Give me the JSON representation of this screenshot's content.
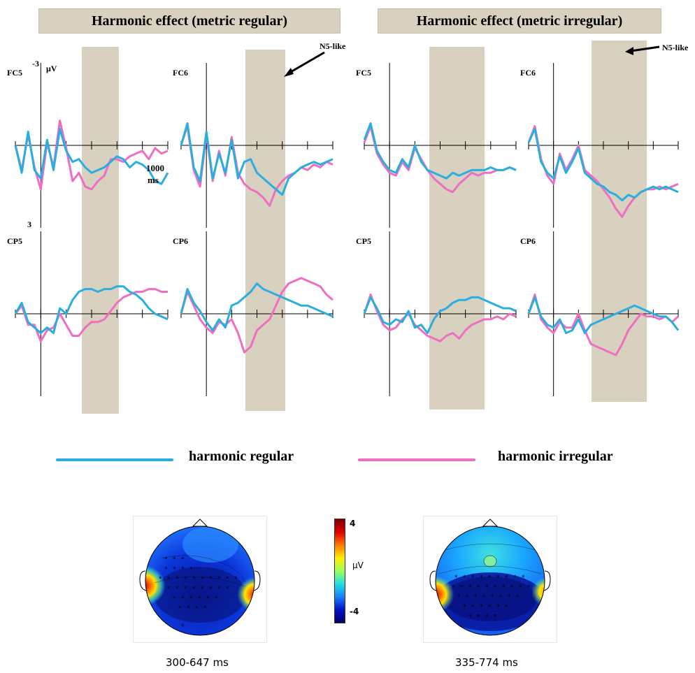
{
  "banners": {
    "left": "Harmonic effect  (metric regular)",
    "right": "Harmonic effect  (metric irregular)"
  },
  "axis_labels": {
    "uv": "μV",
    "neg": "-3",
    "pos": "3",
    "time": "1000",
    "time_unit": "ms"
  },
  "annotation": "N5-like",
  "legend": {
    "regular": {
      "label": "harmonic regular",
      "color": "#2aaee0"
    },
    "irregular": {
      "label": "harmonic irregular",
      "color": "#f06ec0"
    }
  },
  "colorbar": {
    "max": "4",
    "min": "-4",
    "unit": "μV"
  },
  "topomaps": [
    {
      "caption": "300-647  ms"
    },
    {
      "caption": "335-774  ms"
    }
  ],
  "chart_data": [
    {
      "type": "line",
      "panel": "metric regular",
      "electrode": "FC5",
      "x": [
        -200,
        -150,
        -100,
        -50,
        0,
        50,
        100,
        150,
        200,
        250,
        300,
        350,
        400,
        450,
        500,
        550,
        600,
        650,
        700,
        750,
        800,
        850,
        900,
        950,
        1000
      ],
      "ylim": [
        3,
        -3
      ],
      "xlim": [
        -200,
        1000
      ],
      "highlight_window": [
        300,
        647
      ],
      "series": [
        {
          "name": "harmonic regular",
          "values": [
            0.0,
            1.0,
            -0.5,
            0.9,
            1.2,
            -0.2,
            0.9,
            -0.6,
            0.2,
            0.6,
            0.5,
            0.8,
            1.0,
            0.9,
            0.8,
            0.6,
            0.4,
            0.5,
            0.8,
            0.6,
            0.7,
            0.9,
            1.3,
            1.4,
            1.0
          ]
        },
        {
          "name": "harmonic irregular",
          "values": [
            0.0,
            0.9,
            -0.4,
            0.8,
            1.6,
            -0.1,
            0.8,
            -0.9,
            0.1,
            1.3,
            1.0,
            1.5,
            1.6,
            1.3,
            1.1,
            0.5,
            0.5,
            0.6,
            0.4,
            0.3,
            0.2,
            0.5,
            0.1,
            0.3,
            0.2
          ]
        }
      ]
    },
    {
      "type": "line",
      "panel": "metric regular",
      "electrode": "FC6",
      "x": [
        -200,
        -150,
        -100,
        -50,
        0,
        50,
        100,
        150,
        200,
        250,
        300,
        350,
        400,
        450,
        500,
        550,
        600,
        650,
        700,
        750,
        800,
        850,
        900,
        950,
        1000
      ],
      "ylim": [
        3,
        -3
      ],
      "xlim": [
        -200,
        1000
      ],
      "highlight_window": [
        300,
        647
      ],
      "series": [
        {
          "name": "harmonic regular",
          "values": [
            0.0,
            -0.8,
            0.8,
            1.3,
            -0.5,
            1.2,
            0.3,
            1.0,
            -0.2,
            1.2,
            0.6,
            0.5,
            1.0,
            1.2,
            1.4,
            1.6,
            1.8,
            1.2,
            1.0,
            0.8,
            0.7,
            0.6,
            0.7,
            0.6,
            0.5
          ]
        },
        {
          "name": "harmonic irregular",
          "values": [
            0.0,
            -0.7,
            0.9,
            1.5,
            -0.4,
            1.3,
            0.2,
            1.1,
            -0.3,
            1.0,
            1.4,
            1.6,
            1.7,
            1.9,
            2.2,
            1.6,
            1.3,
            1.1,
            1.0,
            0.8,
            0.9,
            0.7,
            0.8,
            0.6,
            0.7
          ]
        }
      ]
    },
    {
      "type": "line",
      "panel": "metric irregular",
      "electrode": "FC5",
      "x": [
        -200,
        -150,
        -100,
        -50,
        0,
        50,
        100,
        150,
        200,
        250,
        300,
        350,
        400,
        450,
        500,
        550,
        600,
        650,
        700,
        750,
        800,
        850,
        900,
        950,
        1000
      ],
      "ylim": [
        3,
        -3
      ],
      "xlim": [
        -200,
        1000
      ],
      "highlight_window": [
        335,
        774
      ],
      "series": [
        {
          "name": "harmonic regular",
          "values": [
            -0.2,
            -0.8,
            0.2,
            0.6,
            0.9,
            1.0,
            0.5,
            0.8,
            0.0,
            0.6,
            0.9,
            1.0,
            1.1,
            1.2,
            1.0,
            1.1,
            1.0,
            0.9,
            0.9,
            0.9,
            0.8,
            0.9,
            0.9,
            0.8,
            0.9
          ]
        },
        {
          "name": "harmonic irregular",
          "values": [
            -0.1,
            -0.7,
            0.3,
            0.7,
            1.0,
            1.1,
            0.6,
            0.9,
            0.1,
            0.5,
            0.9,
            1.2,
            1.4,
            1.6,
            1.7,
            1.4,
            1.2,
            1.0,
            1.1,
            1.0,
            1.0,
            0.9,
            0.9,
            0.8,
            0.9
          ]
        }
      ]
    },
    {
      "type": "line",
      "panel": "metric irregular",
      "electrode": "FC6",
      "x": [
        -200,
        -150,
        -100,
        -50,
        0,
        50,
        100,
        150,
        200,
        250,
        300,
        350,
        400,
        450,
        500,
        550,
        600,
        650,
        700,
        750,
        800,
        850,
        900,
        950,
        1000
      ],
      "ylim": [
        3,
        -3
      ],
      "xlim": [
        -200,
        1000
      ],
      "highlight_window": [
        335,
        774
      ],
      "series": [
        {
          "name": "harmonic regular",
          "values": [
            -0.1,
            -0.6,
            0.6,
            1.0,
            1.2,
            0.4,
            1.0,
            0.6,
            0.1,
            1.0,
            1.2,
            1.4,
            1.5,
            1.7,
            1.8,
            2.0,
            1.8,
            1.9,
            1.7,
            1.6,
            1.5,
            1.6,
            1.5,
            1.6,
            1.7
          ]
        },
        {
          "name": "harmonic irregular",
          "values": [
            -0.1,
            -0.7,
            0.5,
            1.1,
            1.4,
            0.3,
            0.9,
            0.5,
            0.0,
            0.9,
            1.1,
            1.3,
            1.6,
            1.9,
            2.3,
            2.6,
            2.2,
            1.9,
            1.7,
            1.6,
            1.6,
            1.5,
            1.6,
            1.5,
            1.4
          ]
        }
      ]
    },
    {
      "type": "line",
      "panel": "metric regular",
      "electrode": "CP5",
      "x": [
        -200,
        -150,
        -100,
        -50,
        0,
        50,
        100,
        150,
        200,
        250,
        300,
        350,
        400,
        450,
        500,
        550,
        600,
        650,
        700,
        750,
        800,
        850,
        900,
        950,
        1000
      ],
      "ylim": [
        3,
        -3
      ],
      "xlim": [
        -200,
        1000
      ],
      "highlight_window": [
        300,
        647
      ],
      "series": [
        {
          "name": "harmonic regular",
          "values": [
            0.0,
            -0.4,
            0.3,
            0.5,
            0.7,
            0.5,
            0.7,
            -0.2,
            0.0,
            -0.5,
            -0.8,
            -0.9,
            -0.9,
            -0.8,
            -0.9,
            -0.9,
            -1.0,
            -1.0,
            -0.8,
            -0.7,
            -0.5,
            -0.2,
            0.0,
            0.1,
            0.2
          ]
        },
        {
          "name": "harmonic irregular",
          "values": [
            0.0,
            -0.3,
            0.4,
            0.4,
            1.0,
            0.6,
            0.5,
            0.0,
            0.4,
            0.8,
            0.8,
            0.5,
            0.3,
            0.3,
            0.2,
            -0.1,
            -0.4,
            -0.6,
            -0.7,
            -0.8,
            -0.8,
            -0.9,
            -0.9,
            -0.8,
            -0.8
          ]
        }
      ]
    },
    {
      "type": "line",
      "panel": "metric regular",
      "electrode": "CP6",
      "x": [
        -200,
        -150,
        -100,
        -50,
        0,
        50,
        100,
        150,
        200,
        250,
        300,
        350,
        400,
        450,
        500,
        550,
        600,
        650,
        700,
        750,
        800,
        850,
        900,
        950,
        1000
      ],
      "ylim": [
        3,
        -3
      ],
      "xlim": [
        -200,
        1000
      ],
      "highlight_window": [
        300,
        647
      ],
      "series": [
        {
          "name": "harmonic regular",
          "values": [
            0.0,
            -0.9,
            -0.4,
            -0.1,
            0.3,
            0.6,
            0.2,
            0.5,
            -0.3,
            -0.4,
            -0.6,
            -0.8,
            -1.1,
            -0.9,
            -0.8,
            -0.7,
            -0.6,
            -0.5,
            -0.4,
            -0.3,
            -0.3,
            -0.2,
            -0.1,
            0.0,
            0.1
          ]
        },
        {
          "name": "harmonic irregular",
          "values": [
            0.0,
            -0.8,
            -0.3,
            0.2,
            0.5,
            0.7,
            0.3,
            0.4,
            0.2,
            0.7,
            1.4,
            1.2,
            0.6,
            0.4,
            0.2,
            -0.3,
            -0.8,
            -1.1,
            -1.2,
            -1.3,
            -1.2,
            -1.1,
            -1.0,
            -0.7,
            -0.5
          ]
        }
      ]
    },
    {
      "type": "line",
      "panel": "metric irregular",
      "electrode": "CP5",
      "x": [
        -200,
        -150,
        -100,
        -50,
        0,
        50,
        100,
        150,
        200,
        250,
        300,
        350,
        400,
        450,
        500,
        550,
        600,
        650,
        700,
        750,
        800,
        850,
        900,
        950,
        1000
      ],
      "ylim": [
        3,
        -3
      ],
      "xlim": [
        -200,
        1000
      ],
      "highlight_window": [
        335,
        774
      ],
      "series": [
        {
          "name": "harmonic regular",
          "values": [
            0.0,
            -0.6,
            -0.2,
            0.3,
            0.4,
            0.2,
            0.3,
            -0.1,
            0.5,
            0.4,
            0.7,
            0.2,
            -0.1,
            -0.2,
            -0.4,
            -0.5,
            -0.5,
            -0.6,
            -0.6,
            -0.5,
            -0.4,
            -0.3,
            -0.2,
            -0.2,
            -0.1
          ]
        },
        {
          "name": "harmonic irregular",
          "values": [
            0.0,
            -0.7,
            -0.1,
            0.4,
            0.6,
            0.5,
            0.2,
            0.0,
            0.4,
            0.6,
            0.8,
            0.9,
            1.0,
            0.8,
            0.7,
            0.9,
            0.6,
            0.4,
            0.3,
            0.2,
            0.2,
            0.1,
            0.2,
            0.0,
            0.1
          ]
        }
      ]
    },
    {
      "type": "line",
      "panel": "metric irregular",
      "electrode": "CP6",
      "x": [
        -200,
        -150,
        -100,
        -50,
        0,
        50,
        100,
        150,
        200,
        250,
        300,
        350,
        400,
        450,
        500,
        550,
        600,
        650,
        700,
        750,
        800,
        850,
        900,
        950,
        1000
      ],
      "ylim": [
        3,
        -3
      ],
      "xlim": [
        -200,
        1000
      ],
      "highlight_window": [
        335,
        774
      ],
      "series": [
        {
          "name": "harmonic regular",
          "values": [
            0.0,
            -0.6,
            0.1,
            0.4,
            0.5,
            0.2,
            0.7,
            0.6,
            0.2,
            0.7,
            0.4,
            0.3,
            0.2,
            0.1,
            0.0,
            -0.1,
            -0.2,
            -0.3,
            -0.2,
            -0.1,
            0.0,
            0.1,
            0.1,
            0.3,
            0.6
          ]
        },
        {
          "name": "harmonic irregular",
          "values": [
            0.0,
            -0.7,
            0.2,
            0.5,
            0.7,
            0.3,
            0.5,
            0.5,
            0.0,
            0.6,
            1.1,
            1.2,
            1.3,
            1.4,
            1.5,
            1.1,
            0.6,
            0.3,
            0.0,
            0.1,
            0.1,
            0.2,
            0.1,
            0.3,
            0.1
          ]
        }
      ]
    }
  ]
}
